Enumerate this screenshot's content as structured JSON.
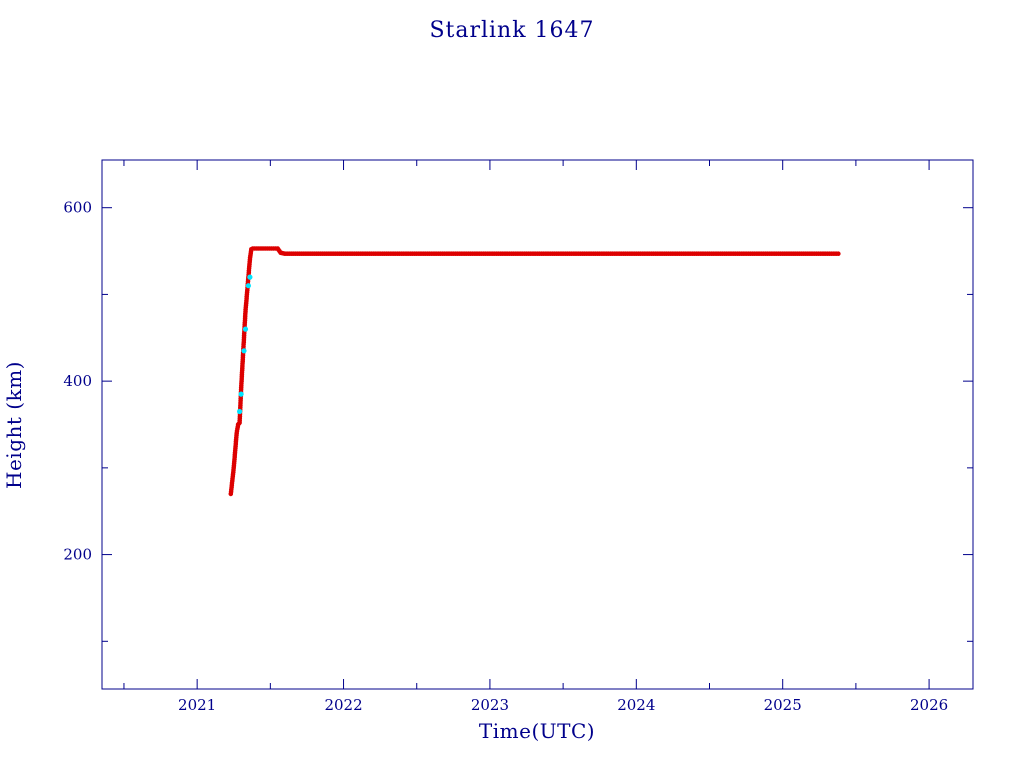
{
  "chart_data": {
    "type": "scatter",
    "title": "Starlink 1647",
    "xlabel": "Time(UTC)",
    "ylabel": "Height (km)",
    "xlim": [
      2020.35,
      2026.3
    ],
    "ylim": [
      45,
      655
    ],
    "x_ticks": [
      2021,
      2022,
      2023,
      2024,
      2025,
      2026
    ],
    "y_ticks": [
      200,
      400,
      600
    ],
    "x_minor_ticks": [
      2020.5,
      2021.5,
      2022.5,
      2023.5,
      2024.5,
      2025.5
    ],
    "y_minor_ticks": [
      100,
      300,
      500
    ],
    "grid": false,
    "colors": {
      "axis": "#00008b",
      "primary_points": "#dd0000",
      "secondary_points": "#00e5ff"
    },
    "series": [
      {
        "x": [
          2021.23,
          2021.25,
          2021.27,
          2021.28,
          2021.29,
          2021.3,
          2021.31,
          2021.32,
          2021.33,
          2021.34,
          2021.35,
          2021.36,
          2021.37,
          2021.38,
          2021.45,
          2021.55,
          2021.57,
          2021.6,
          2021.8,
          2022.0,
          2022.5,
          2023.0,
          2023.5,
          2024.0,
          2024.5,
          2025.0,
          2025.2,
          2025.38
        ],
        "y": [
          270,
          300,
          340,
          350,
          352,
          390,
          420,
          450,
          480,
          500,
          520,
          540,
          552,
          553,
          553,
          553,
          548,
          547,
          547,
          547,
          547,
          547,
          547,
          547,
          547,
          547,
          547,
          547
        ]
      },
      {
        "x": [
          2021.29,
          2021.3,
          2021.32,
          2021.33,
          2021.35,
          2021.36
        ],
        "y": [
          365,
          385,
          435,
          460,
          510,
          520
        ]
      }
    ]
  }
}
